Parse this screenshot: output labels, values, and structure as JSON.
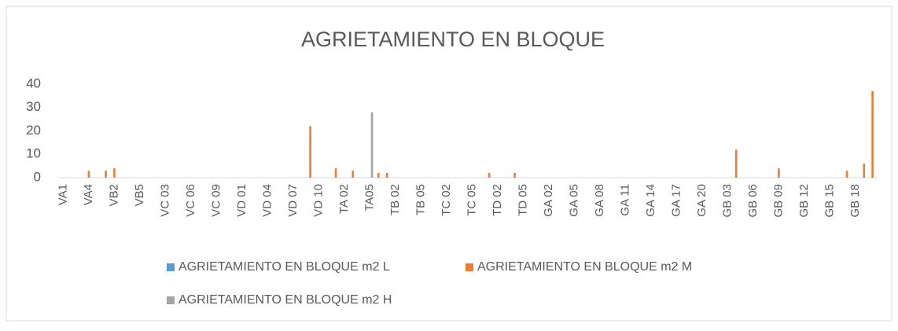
{
  "chart_data": {
    "type": "bar",
    "title": "AGRIETAMIENTO EN BLOQUE",
    "categories": [
      "VA1",
      null,
      null,
      "VA4",
      null,
      null,
      "VB2",
      null,
      null,
      "VB5",
      null,
      null,
      "VC 03",
      null,
      null,
      "VC 06",
      null,
      null,
      "VC 09",
      null,
      null,
      "VD 01",
      null,
      null,
      "VD 04",
      null,
      null,
      "VD 07",
      null,
      null,
      "VD 10",
      null,
      null,
      "TA 02",
      null,
      null,
      "TA05",
      null,
      null,
      "TB 02",
      null,
      null,
      "TB 05",
      null,
      null,
      "TC 02",
      null,
      null,
      "TC 05",
      null,
      null,
      "TD 02",
      null,
      null,
      "TD 05",
      null,
      null,
      "GA 02",
      null,
      null,
      "GA 05",
      null,
      null,
      "GA 08",
      null,
      null,
      "GA 11",
      null,
      null,
      "GA 14",
      null,
      null,
      "GA 17",
      null,
      null,
      "GA 20",
      null,
      null,
      "GB 03",
      null,
      null,
      "GB 06",
      null,
      null,
      "GB 09",
      null,
      null,
      "GB 12",
      null,
      null,
      "GB 15",
      null,
      null,
      "GB 18",
      null,
      null
    ],
    "series": [
      {
        "name": "AGRIETAMIENTO EN BLOQUE m2 L",
        "color": "#5b9bd5",
        "values": [
          0,
          0,
          0,
          0,
          0,
          0,
          0,
          0,
          0,
          0,
          0,
          0,
          0,
          0,
          0,
          0,
          0,
          0,
          0,
          0,
          0,
          0,
          0,
          0,
          0,
          0,
          0,
          0,
          0,
          0,
          0,
          0,
          0,
          0,
          0,
          0,
          0,
          0,
          0,
          0,
          0,
          0,
          0,
          0,
          0,
          0,
          0,
          0,
          0,
          0,
          0,
          0,
          0,
          0,
          0,
          0,
          0,
          0,
          0,
          0,
          0,
          0,
          0,
          0,
          0,
          0,
          0,
          0,
          0,
          0,
          0,
          0,
          0,
          0,
          0,
          0,
          0,
          0,
          0,
          0,
          0,
          0,
          0,
          0,
          0,
          0,
          0,
          0,
          0,
          0,
          0,
          0,
          0,
          0,
          0,
          0
        ]
      },
      {
        "name": "AGRIETAMIENTO EN BLOQUE m2 M",
        "color": "#ed7d31",
        "values": [
          0,
          0,
          0,
          3,
          0,
          3,
          4,
          0,
          0,
          0,
          0,
          0,
          0,
          0,
          0,
          0,
          0,
          0,
          0,
          0,
          0,
          0,
          0,
          0,
          0,
          0,
          0,
          0,
          0,
          22,
          0,
          0,
          4,
          0,
          3,
          0,
          0,
          2,
          2,
          0,
          0,
          0,
          0,
          0,
          0,
          0,
          0,
          0,
          0,
          0,
          2,
          0,
          0,
          2,
          0,
          0,
          0,
          0,
          0,
          0,
          0,
          0,
          0,
          0,
          0,
          0,
          0,
          0,
          0,
          0,
          0,
          0,
          0,
          0,
          0,
          0,
          0,
          0,
          0,
          12,
          0,
          0,
          0,
          0,
          4,
          0,
          0,
          0,
          0,
          0,
          0,
          0,
          3,
          0,
          6,
          37
        ]
      },
      {
        "name": "AGRIETAMIENTO EN BLOQUE m2 H",
        "color": "#a5a5a5",
        "values": [
          0,
          0,
          0,
          0,
          0,
          0,
          0,
          0,
          0,
          0,
          0,
          0,
          0,
          0,
          0,
          0,
          0,
          0,
          0,
          0,
          0,
          0,
          0,
          0,
          0,
          0,
          0,
          0,
          0,
          0,
          0,
          0,
          0,
          0,
          0,
          0,
          28,
          0,
          0,
          0,
          0,
          0,
          0,
          0,
          0,
          0,
          0,
          0,
          0,
          0,
          0,
          0,
          0,
          0,
          0,
          0,
          0,
          0,
          0,
          0,
          0,
          0,
          0,
          0,
          0,
          0,
          0,
          0,
          0,
          0,
          0,
          0,
          0,
          0,
          0,
          0,
          0,
          0,
          0,
          0,
          0,
          0,
          0,
          0,
          0,
          0,
          0,
          0,
          0,
          0,
          0,
          0,
          0,
          0,
          0,
          0
        ]
      }
    ],
    "ylim": [
      0,
      40
    ],
    "yticks": [
      0,
      10,
      20,
      30,
      40
    ]
  }
}
